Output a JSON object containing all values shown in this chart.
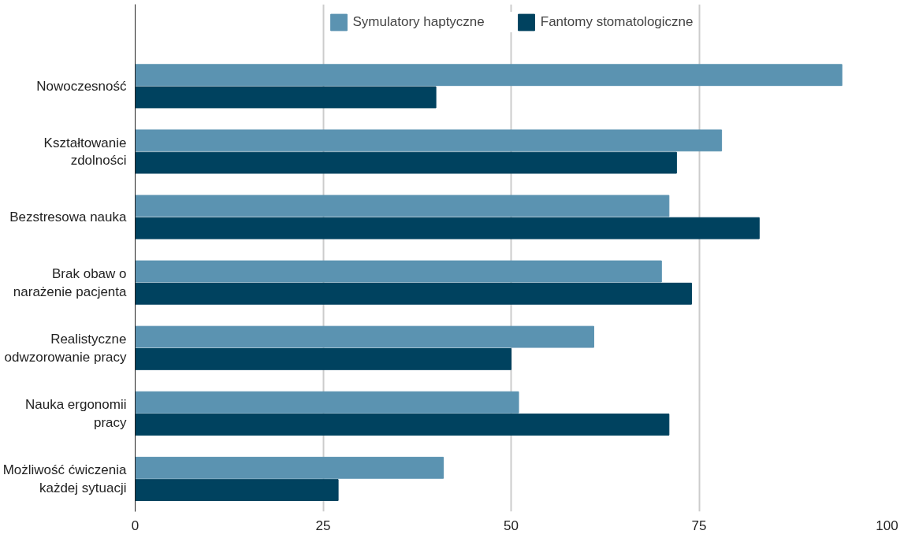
{
  "chart_data": {
    "type": "bar",
    "orientation": "horizontal",
    "categories": [
      "Nowoczesność",
      "Kształtowanie zdolności",
      "Bezstresowa nauka",
      "Brak obaw o narażenie pacjenta",
      "Realistyczne odwzorowanie pracy",
      "Nauka ergonomii pracy",
      "Możliwość ćwiczenia każdej sytuacji"
    ],
    "series": [
      {
        "name": "Symulatory haptyczne",
        "color": "#5b93b1",
        "values": [
          94,
          78,
          71,
          70,
          61,
          51,
          41
        ]
      },
      {
        "name": "Fantomy stomatologiczne",
        "color": "#00425f",
        "values": [
          40,
          72,
          83,
          74,
          50,
          71,
          27
        ]
      }
    ],
    "xlim": [
      0,
      100
    ],
    "xticks": [
      0,
      25,
      50,
      75,
      100
    ],
    "grid": "x",
    "legend": "top"
  }
}
